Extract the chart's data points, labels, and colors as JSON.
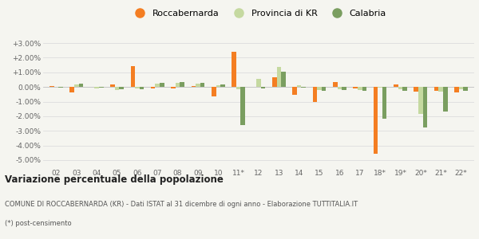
{
  "categories": [
    "02",
    "03",
    "04",
    "05",
    "06",
    "07",
    "08",
    "09",
    "10",
    "11*",
    "12",
    "13",
    "14",
    "15",
    "16",
    "17",
    "18*",
    "19*",
    "20*",
    "21*",
    "22*"
  ],
  "roccabernarda": [
    0.05,
    -0.4,
    0.02,
    0.15,
    1.4,
    -0.1,
    -0.1,
    0.05,
    -0.65,
    2.4,
    0.0,
    0.65,
    -0.55,
    -1.05,
    0.35,
    -0.1,
    -4.55,
    0.15,
    -0.3,
    -0.25,
    -0.35
  ],
  "provincia_kr": [
    0.0,
    0.15,
    -0.1,
    -0.2,
    -0.1,
    0.25,
    0.3,
    0.25,
    0.1,
    -0.15,
    0.55,
    1.35,
    0.1,
    -0.2,
    -0.15,
    -0.2,
    -0.05,
    -0.15,
    -1.85,
    -0.3,
    -0.15
  ],
  "calabria": [
    -0.05,
    0.2,
    -0.05,
    -0.15,
    -0.15,
    0.3,
    0.35,
    0.3,
    0.15,
    -2.6,
    -0.1,
    1.05,
    -0.05,
    -0.25,
    -0.2,
    -0.25,
    -2.15,
    -0.25,
    -2.75,
    -1.7,
    -0.25
  ],
  "color_rocca": "#f47e22",
  "color_provincia": "#c5d9a0",
  "color_calabria": "#7a9e60",
  "ylim": [
    -5.5,
    3.5
  ],
  "yticks": [
    -5.0,
    -4.0,
    -3.0,
    -2.0,
    -1.0,
    0.0,
    1.0,
    2.0,
    3.0
  ],
  "ytick_labels": [
    "-5.00%",
    "-4.00%",
    "-3.00%",
    "-2.00%",
    "-1.00%",
    "0.00%",
    "+1.00%",
    "+2.00%",
    "+3.00%"
  ],
  "title": "Variazione percentuale della popolazione",
  "legend_labels": [
    "Roccabernarda",
    "Provincia di KR",
    "Calabria"
  ],
  "footer1": "COMUNE DI ROCCABERNARDA (KR) - Dati ISTAT al 31 dicembre di ogni anno - Elaborazione TUTTITALIA.IT",
  "footer2": "(*) post-censimento",
  "bg_color": "#f5f5f0",
  "grid_color": "#dddddd",
  "bar_width": 0.22
}
